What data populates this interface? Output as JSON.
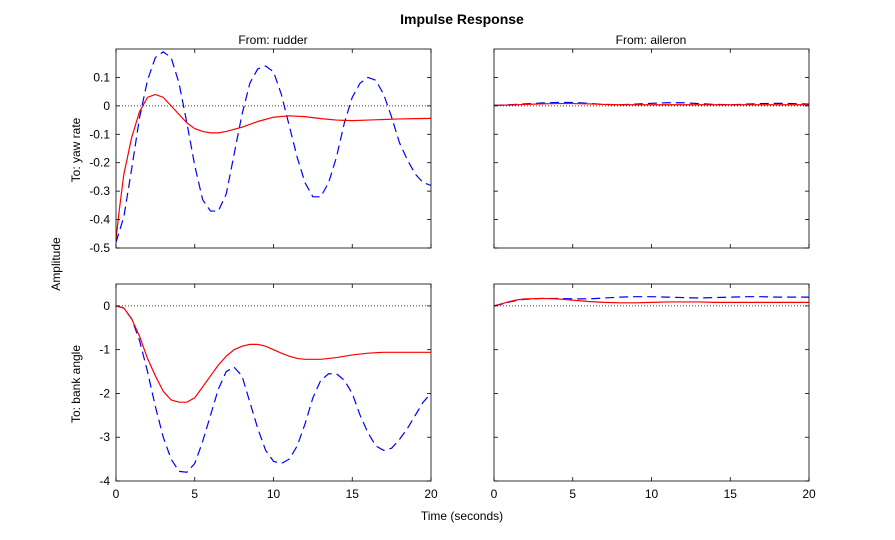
{
  "chart_data": {
    "type": "line",
    "title": "Impulse Response",
    "xlabel": "Time (seconds)",
    "ylabel": "Amplitude",
    "grid": false,
    "column_titles": [
      "From: rudder",
      "From: aileron"
    ],
    "row_titles": [
      "To: yaw rate",
      "To: bank angle"
    ],
    "colors": {
      "series_dashed": "#0000ff",
      "series_solid": "#ff0000",
      "zero_line": "#000000"
    },
    "xlim": [
      0,
      20
    ],
    "xticks": [
      0,
      5,
      10,
      15,
      20
    ],
    "rows": [
      {
        "ylim": [
          -0.5,
          0.2
        ],
        "yticks": [
          -0.5,
          -0.4,
          -0.3,
          -0.2,
          -0.1,
          0,
          0.1
        ],
        "ytick_labels": [
          "-0.5",
          "-0.4",
          "-0.3",
          "-0.2",
          "-0.1",
          "0",
          "0.1"
        ]
      },
      {
        "ylim": [
          -4,
          0.5
        ],
        "yticks": [
          -4,
          -3,
          -2,
          -1,
          0
        ],
        "ytick_labels": [
          "-4",
          "-3",
          "-2",
          "-1",
          "0"
        ]
      }
    ],
    "panels": [
      {
        "row": 0,
        "col": 0,
        "series": [
          {
            "style": "dashed",
            "color": "#0000ff",
            "x": [
              0,
              0.5,
              1,
              1.5,
              2,
              2.5,
              3,
              3.5,
              4,
              4.5,
              5,
              5.5,
              6,
              6.5,
              7,
              7.5,
              8,
              8.5,
              9,
              9.5,
              10,
              10.5,
              11,
              11.5,
              12,
              12.5,
              13,
              13.5,
              14,
              14.5,
              15,
              15.5,
              16,
              16.5,
              17,
              17.5,
              18,
              18.5,
              19,
              19.5,
              20
            ],
            "y": [
              -0.48,
              -0.39,
              -0.22,
              -0.04,
              0.09,
              0.17,
              0.19,
              0.17,
              0.08,
              -0.06,
              -0.21,
              -0.33,
              -0.37,
              -0.37,
              -0.31,
              -0.17,
              -0.03,
              0.08,
              0.13,
              0.14,
              0.12,
              0.04,
              -0.07,
              -0.18,
              -0.27,
              -0.32,
              -0.32,
              -0.27,
              -0.18,
              -0.06,
              0.03,
              0.08,
              0.1,
              0.09,
              0.04,
              -0.04,
              -0.13,
              -0.19,
              -0.24,
              -0.27,
              -0.28
            ]
          },
          {
            "style": "solid",
            "color": "#ff0000",
            "x": [
              0,
              0.2,
              0.5,
              1,
              1.5,
              2,
              2.5,
              3,
              3.5,
              4,
              4.5,
              5,
              5.5,
              6,
              6.5,
              7,
              8,
              9,
              10,
              11,
              12,
              13,
              14,
              15,
              16,
              17,
              18,
              19,
              20
            ],
            "y": [
              -0.47,
              -0.37,
              -0.24,
              -0.11,
              -0.02,
              0.03,
              0.04,
              0.03,
              0.0,
              -0.03,
              -0.06,
              -0.08,
              -0.09,
              -0.095,
              -0.095,
              -0.09,
              -0.075,
              -0.055,
              -0.04,
              -0.035,
              -0.038,
              -0.045,
              -0.05,
              -0.052,
              -0.05,
              -0.048,
              -0.046,
              -0.045,
              -0.044
            ]
          }
        ]
      },
      {
        "row": 0,
        "col": 1,
        "series": [
          {
            "style": "dashed",
            "color": "#0000ff",
            "x": [
              0,
              1,
              2,
              3,
              4,
              5,
              6,
              7,
              8,
              9,
              10,
              11,
              12,
              13,
              14,
              15,
              16,
              17,
              18,
              19,
              20
            ],
            "y": [
              0.002,
              0.004,
              0.007,
              0.01,
              0.012,
              0.012,
              0.009,
              0.005,
              0.004,
              0.006,
              0.009,
              0.011,
              0.011,
              0.008,
              0.005,
              0.004,
              0.006,
              0.008,
              0.009,
              0.008,
              0.006
            ]
          },
          {
            "style": "solid",
            "color": "#ff0000",
            "x": [
              0,
              1,
              2,
              3,
              4,
              5,
              6,
              7,
              8,
              9,
              10,
              11,
              12,
              13,
              14,
              15,
              16,
              17,
              18,
              19,
              20
            ],
            "y": [
              0.002,
              0.003,
              0.005,
              0.007,
              0.008,
              0.008,
              0.007,
              0.005,
              0.004,
              0.004,
              0.004,
              0.004,
              0.004,
              0.004,
              0.004,
              0.004,
              0.004,
              0.004,
              0.004,
              0.004,
              0.004
            ]
          }
        ]
      },
      {
        "row": 1,
        "col": 0,
        "series": [
          {
            "style": "dashed",
            "color": "#0000ff",
            "x": [
              0,
              0.5,
              1,
              1.5,
              2,
              2.5,
              3,
              3.5,
              4,
              4.5,
              5,
              5.5,
              6,
              6.5,
              7,
              7.5,
              8,
              8.5,
              9,
              9.5,
              10,
              10.5,
              11,
              11.5,
              12,
              12.5,
              13,
              13.5,
              14,
              14.5,
              15,
              15.5,
              16,
              16.5,
              17,
              17.5,
              18,
              18.5,
              19,
              19.5,
              20
            ],
            "y": [
              0,
              -0.05,
              -0.3,
              -0.8,
              -1.5,
              -2.3,
              -3.0,
              -3.5,
              -3.78,
              -3.8,
              -3.6,
              -3.1,
              -2.5,
              -1.9,
              -1.5,
              -1.4,
              -1.6,
              -2.2,
              -2.8,
              -3.3,
              -3.55,
              -3.6,
              -3.5,
              -3.2,
              -2.7,
              -2.1,
              -1.7,
              -1.55,
              -1.55,
              -1.7,
              -2.0,
              -2.5,
              -2.9,
              -3.2,
              -3.3,
              -3.25,
              -3.05,
              -2.8,
              -2.5,
              -2.2,
              -2.0
            ]
          },
          {
            "style": "solid",
            "color": "#ff0000",
            "x": [
              0,
              0.5,
              1,
              1.5,
              2,
              2.5,
              3,
              3.5,
              4,
              4.5,
              5,
              5.5,
              6,
              6.5,
              7,
              7.5,
              8,
              8.5,
              9,
              9.5,
              10,
              10.5,
              11,
              11.5,
              12,
              13,
              14,
              15,
              16,
              17,
              18,
              19,
              20
            ],
            "y": [
              0,
              -0.05,
              -0.3,
              -0.7,
              -1.2,
              -1.6,
              -1.95,
              -2.15,
              -2.2,
              -2.2,
              -2.1,
              -1.85,
              -1.6,
              -1.35,
              -1.15,
              -1.0,
              -0.92,
              -0.88,
              -0.88,
              -0.92,
              -1.0,
              -1.08,
              -1.15,
              -1.2,
              -1.22,
              -1.22,
              -1.18,
              -1.12,
              -1.08,
              -1.06,
              -1.06,
              -1.06,
              -1.06
            ]
          }
        ]
      },
      {
        "row": 1,
        "col": 1,
        "series": [
          {
            "style": "dashed",
            "color": "#0000ff",
            "x": [
              0,
              0.5,
              1,
              1.5,
              2,
              3,
              4,
              5,
              6,
              7,
              8,
              9,
              10,
              11,
              12,
              13,
              14,
              15,
              16,
              17,
              18,
              19,
              20
            ],
            "y": [
              0,
              0.04,
              0.09,
              0.13,
              0.15,
              0.17,
              0.17,
              0.16,
              0.16,
              0.18,
              0.2,
              0.21,
              0.21,
              0.2,
              0.19,
              0.18,
              0.19,
              0.2,
              0.21,
              0.21,
              0.2,
              0.2,
              0.2
            ]
          },
          {
            "style": "solid",
            "color": "#ff0000",
            "x": [
              0,
              0.5,
              1,
              1.5,
              2,
              3,
              4,
              5,
              6,
              7,
              8,
              9,
              10,
              11,
              12,
              13,
              14,
              15,
              16,
              17,
              18,
              19,
              20
            ],
            "y": [
              0,
              0.05,
              0.1,
              0.14,
              0.16,
              0.17,
              0.16,
              0.13,
              0.1,
              0.08,
              0.07,
              0.07,
              0.08,
              0.09,
              0.09,
              0.09,
              0.08,
              0.08,
              0.08,
              0.08,
              0.08,
              0.08,
              0.08
            ]
          }
        ]
      }
    ]
  }
}
